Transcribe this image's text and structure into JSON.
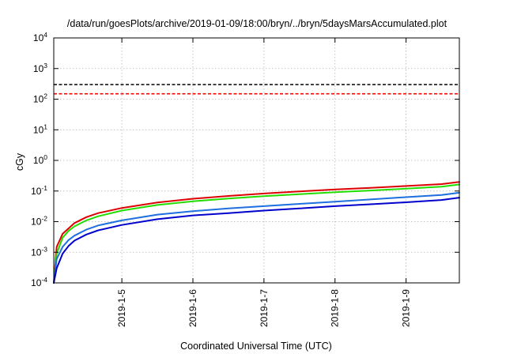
{
  "chart_data": {
    "type": "line",
    "title": "/data/run/goesPlots/archive/2019-01-09/18:00/bryn/../bryn/5daysMarsAccumulated.plot",
    "xlabel": "Coordinated Universal Time (UTC)",
    "ylabel": "cGy",
    "yscale": "log",
    "ylim": [
      0.0001,
      10000
    ],
    "xlim": [
      "2019-01-04T01:00",
      "2019-01-09T18:00"
    ],
    "grid": true,
    "y_ticks": [
      {
        "base": "10",
        "exp": "-4",
        "value": 0.0001
      },
      {
        "base": "10",
        "exp": "-3",
        "value": 0.001
      },
      {
        "base": "10",
        "exp": "-2",
        "value": 0.01
      },
      {
        "base": "10",
        "exp": "-1",
        "value": 0.1
      },
      {
        "base": "10",
        "exp": "0",
        "value": 1
      },
      {
        "base": "10",
        "exp": "1",
        "value": 10
      },
      {
        "base": "10",
        "exp": "2",
        "value": 100
      },
      {
        "base": "10",
        "exp": "3",
        "value": 1000
      },
      {
        "base": "10",
        "exp": "4",
        "value": 10000
      }
    ],
    "x_ticks": [
      {
        "label": "2019-1-5",
        "value": "2019-01-05T00:00"
      },
      {
        "label": "2019-1-6",
        "value": "2019-01-06T00:00"
      },
      {
        "label": "2019-1-7",
        "value": "2019-01-07T00:00"
      },
      {
        "label": "2019-1-8",
        "value": "2019-01-08T00:00"
      },
      {
        "label": "2019-1-9",
        "value": "2019-01-09T00:00"
      }
    ],
    "reference_lines": [
      {
        "y": 300,
        "color": "#000000",
        "style": "dashed"
      },
      {
        "y": 150,
        "color": "#ff0000",
        "style": "dashed"
      }
    ],
    "series": [
      {
        "color": "#dd0000",
        "x": [
          "2019-01-04T01:00",
          "2019-01-04T02:00",
          "2019-01-04T04:00",
          "2019-01-04T06:00",
          "2019-01-04T08:00",
          "2019-01-04T12:00",
          "2019-01-04T16:00",
          "2019-01-05T00:00",
          "2019-01-05T12:00",
          "2019-01-06T00:00",
          "2019-01-06T12:00",
          "2019-01-07T00:00",
          "2019-01-07T12:00",
          "2019-01-08T00:00",
          "2019-01-08T12:00",
          "2019-01-09T00:00",
          "2019-01-09T12:00",
          "2019-01-09T18:00"
        ],
        "y": [
          0.0001,
          0.0015,
          0.004,
          0.006,
          0.009,
          0.014,
          0.019,
          0.028,
          0.042,
          0.056,
          0.069,
          0.083,
          0.097,
          0.112,
          0.127,
          0.146,
          0.168,
          0.198
        ]
      },
      {
        "color": "#22dd00",
        "x": [
          "2019-01-04T01:00",
          "2019-01-04T02:00",
          "2019-01-04T04:00",
          "2019-01-04T06:00",
          "2019-01-04T08:00",
          "2019-01-04T12:00",
          "2019-01-04T16:00",
          "2019-01-05T00:00",
          "2019-01-05T12:00",
          "2019-01-06T00:00",
          "2019-01-06T12:00",
          "2019-01-07T00:00",
          "2019-01-07T12:00",
          "2019-01-08T00:00",
          "2019-01-08T12:00",
          "2019-01-09T00:00",
          "2019-01-09T12:00",
          "2019-01-09T18:00"
        ],
        "y": [
          0.0001,
          0.0009,
          0.003,
          0.005,
          0.007,
          0.011,
          0.015,
          0.023,
          0.035,
          0.046,
          0.057,
          0.068,
          0.079,
          0.091,
          0.104,
          0.12,
          0.139,
          0.163
        ]
      },
      {
        "color": "#1e6fe0",
        "x": [
          "2019-01-04T01:00",
          "2019-01-04T02:00",
          "2019-01-04T04:00",
          "2019-01-04T06:00",
          "2019-01-04T08:00",
          "2019-01-04T12:00",
          "2019-01-04T16:00",
          "2019-01-05T00:00",
          "2019-01-05T12:00",
          "2019-01-06T00:00",
          "2019-01-06T12:00",
          "2019-01-07T00:00",
          "2019-01-07T12:00",
          "2019-01-08T00:00",
          "2019-01-08T12:00",
          "2019-01-09T00:00",
          "2019-01-09T12:00",
          "2019-01-09T18:00"
        ],
        "y": [
          0.0001,
          0.0006,
          0.0015,
          0.0025,
          0.0035,
          0.0055,
          0.0075,
          0.011,
          0.017,
          0.022,
          0.027,
          0.032,
          0.038,
          0.045,
          0.053,
          0.063,
          0.074,
          0.088
        ]
      },
      {
        "color": "#0000cc",
        "x": [
          "2019-01-04T01:00",
          "2019-01-04T02:00",
          "2019-01-04T04:00",
          "2019-01-04T06:00",
          "2019-01-04T08:00",
          "2019-01-04T12:00",
          "2019-01-04T16:00",
          "2019-01-05T00:00",
          "2019-01-05T12:00",
          "2019-01-06T00:00",
          "2019-01-06T12:00",
          "2019-01-07T00:00",
          "2019-01-07T12:00",
          "2019-01-08T00:00",
          "2019-01-08T12:00",
          "2019-01-09T00:00",
          "2019-01-09T12:00",
          "2019-01-09T18:00"
        ],
        "y": [
          0.0001,
          0.0003,
          0.0009,
          0.0016,
          0.0024,
          0.0038,
          0.0052,
          0.0078,
          0.012,
          0.016,
          0.019,
          0.023,
          0.027,
          0.032,
          0.037,
          0.043,
          0.051,
          0.061
        ]
      }
    ]
  }
}
